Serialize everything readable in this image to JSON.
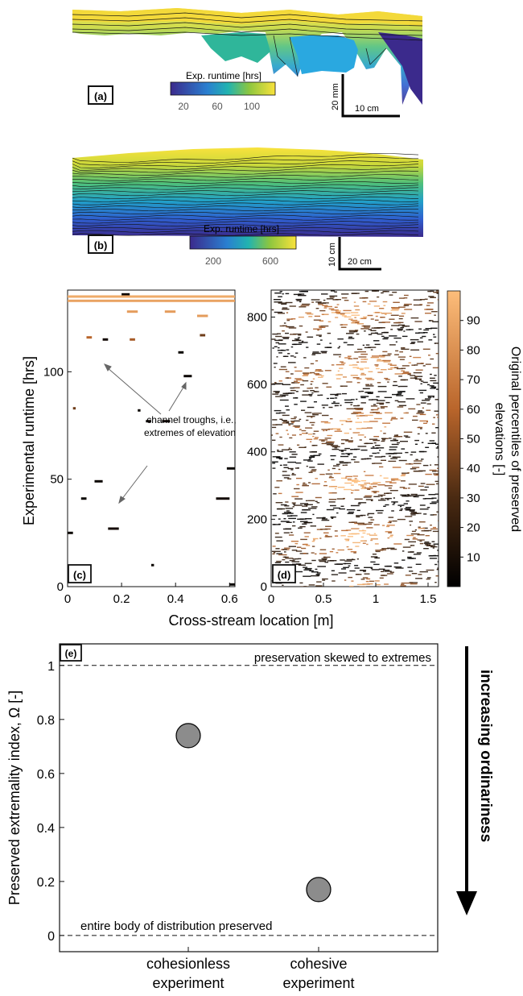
{
  "panels": {
    "a": {
      "label": "(a)",
      "colorbar_title": "Exp. runtime [hrs]",
      "colorbar_ticks": [
        "20",
        "60",
        "100"
      ],
      "scale_vertical": "20 mm",
      "scale_horizontal": "10 cm"
    },
    "b": {
      "label": "(b)",
      "colorbar_title": "Exp. runtime [hrs]",
      "colorbar_ticks": [
        "200",
        "600"
      ],
      "scale_vertical": "10 cm",
      "scale_horizontal": "20 cm"
    },
    "c": {
      "label": "(c)",
      "annotation_line1": "channel troughs, i.e.,",
      "annotation_line2": "extremes of elevation"
    },
    "d": {
      "label": "(d)"
    },
    "e": {
      "label": "(e)"
    }
  },
  "shared": {
    "ylabel_cd": "Experimental runtime [hrs]",
    "xlabel_cd": "Cross-stream location [m]",
    "colorbar_label_line1": "Original percentiles of preserved",
    "colorbar_label_line2": "elevations [-]",
    "arrow_label": "increasing ordinariness"
  },
  "colors": {
    "runtime_low": "#3b2a8c",
    "runtime_mid": "#21a0c8",
    "runtime_high": "#f9e23c",
    "pct_low": "#000000",
    "pct_high": "#fdbd7a",
    "marker_fill": "#8c8c8c"
  },
  "chart_data": [
    {
      "panel": "c",
      "type": "scatter",
      "x_ticks": [
        "0",
        "0.2",
        "0.4",
        "0.6"
      ],
      "y_ticks": [
        "0",
        "50",
        "100"
      ],
      "xlim": [
        0,
        0.62
      ],
      "ylim": [
        0,
        138
      ],
      "segments": [
        {
          "x": 0.0,
          "x2": 0.02,
          "y": 25,
          "pct": 5
        },
        {
          "x": 0.05,
          "x2": 0.07,
          "y": 41,
          "pct": 5
        },
        {
          "x": 0.1,
          "x2": 0.13,
          "y": 49,
          "pct": 5
        },
        {
          "x": 0.15,
          "x2": 0.19,
          "y": 27,
          "pct": 8
        },
        {
          "x": 0.02,
          "x2": 0.03,
          "y": 83,
          "pct": 40
        },
        {
          "x": 0.13,
          "x2": 0.15,
          "y": 115,
          "pct": 8
        },
        {
          "x": 0.07,
          "x2": 0.09,
          "y": 116,
          "pct": 60
        },
        {
          "x": 0.23,
          "x2": 0.25,
          "y": 115,
          "pct": 55
        },
        {
          "x": 0.26,
          "x2": 0.27,
          "y": 82,
          "pct": 5
        },
        {
          "x": 0.29,
          "x2": 0.31,
          "y": 77,
          "pct": 5
        },
        {
          "x": 0.35,
          "x2": 0.38,
          "y": 77,
          "pct": 8
        },
        {
          "x": 0.43,
          "x2": 0.46,
          "y": 98,
          "pct": 5
        },
        {
          "x": 0.41,
          "x2": 0.43,
          "y": 109,
          "pct": 5
        },
        {
          "x": 0.49,
          "x2": 0.51,
          "y": 117,
          "pct": 40
        },
        {
          "x": 0.55,
          "x2": 0.6,
          "y": 41,
          "pct": 8
        },
        {
          "x": 0.59,
          "x2": 0.62,
          "y": 55,
          "pct": 5
        },
        {
          "x": 0.6,
          "x2": 0.62,
          "y": 1,
          "pct": 5
        },
        {
          "x": 0.31,
          "x2": 0.32,
          "y": 10,
          "pct": 5
        },
        {
          "x": 0.22,
          "x2": 0.26,
          "y": 128,
          "pct": 85
        },
        {
          "x": 0.36,
          "x2": 0.4,
          "y": 128,
          "pct": 85
        },
        {
          "x": 0.48,
          "x2": 0.52,
          "y": 126,
          "pct": 85
        },
        {
          "x": 0.2,
          "x2": 0.23,
          "y": 136,
          "pct": 5
        },
        {
          "x": 0.0,
          "x2": 0.62,
          "y": 135,
          "pct": 92
        },
        {
          "x": 0.0,
          "x2": 0.62,
          "y": 133,
          "pct": 88
        }
      ]
    },
    {
      "panel": "d",
      "type": "scatter",
      "x_ticks": [
        "0",
        "0.5",
        "1",
        "1.5"
      ],
      "y_ticks": [
        "0",
        "200",
        "400",
        "600",
        "800"
      ],
      "xlim": [
        0,
        1.6
      ],
      "ylim": [
        0,
        880
      ]
    },
    {
      "panel": "colorbar",
      "type": "heatmap",
      "ticks": [
        "10",
        "20",
        "30",
        "40",
        "50",
        "60",
        "70",
        "80",
        "90"
      ],
      "range": [
        0,
        100
      ]
    },
    {
      "panel": "e",
      "type": "scatter",
      "ylabel": "Preserved extremality index, Ω  [-]",
      "y_ticks": [
        "0",
        "0.2",
        "0.4",
        "0.6",
        "0.8",
        "1"
      ],
      "ylim": [
        -0.06,
        1.08
      ],
      "categories": [
        "cohesionless experiment",
        "cohesive experiment"
      ],
      "category_lines": [
        [
          "cohesionless",
          "experiment"
        ],
        [
          "cohesive",
          "experiment"
        ]
      ],
      "values": [
        0.74,
        0.17
      ],
      "reference_lines": [
        {
          "y": 1,
          "label": "preservation skewed to extremes"
        },
        {
          "y": 0,
          "label": "entire body of distribution preserved"
        }
      ]
    }
  ]
}
